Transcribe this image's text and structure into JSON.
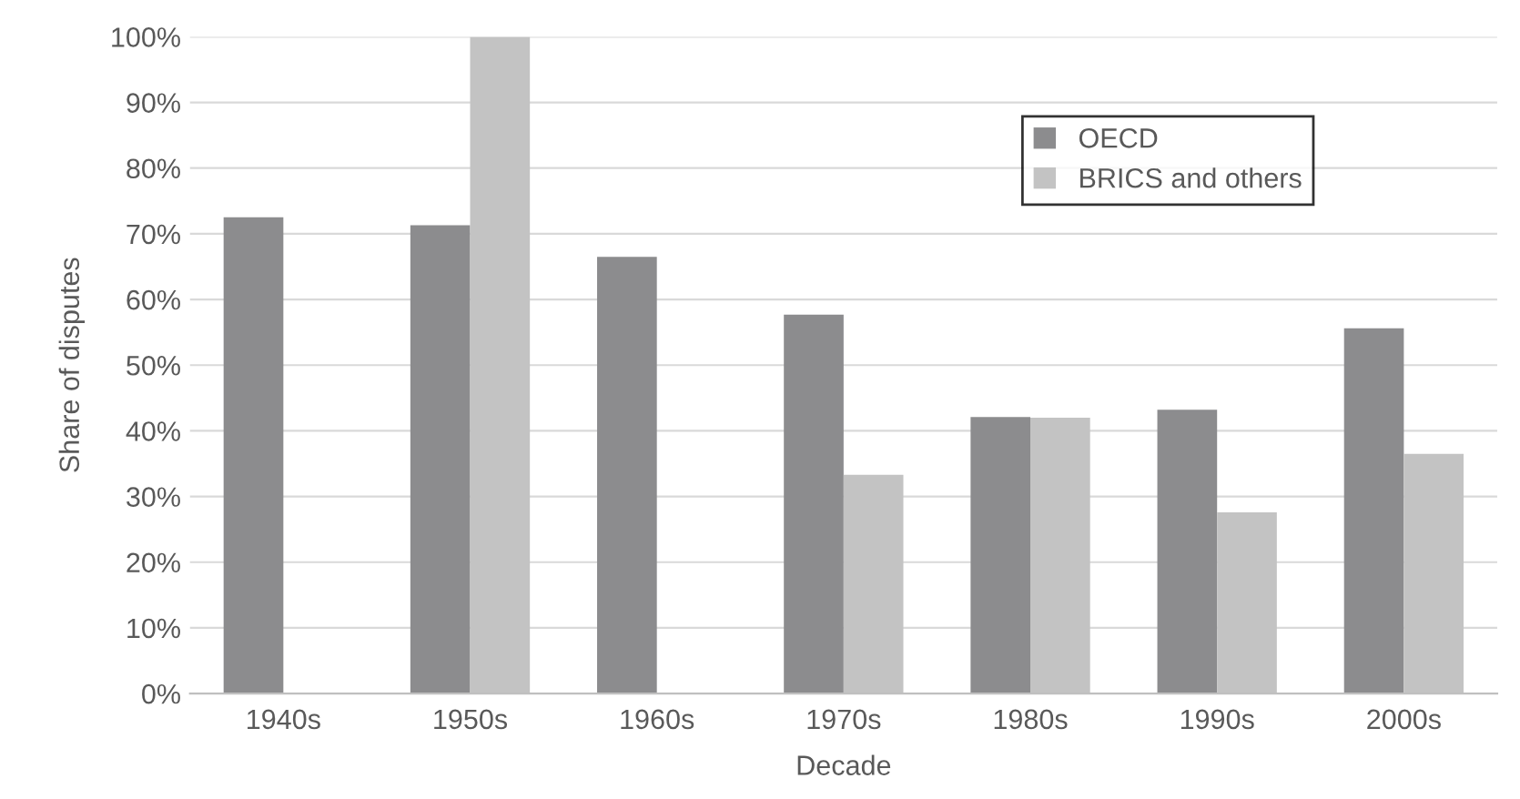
{
  "chart_data": {
    "type": "bar",
    "xlabel": "Decade",
    "ylabel": "Share of disputes",
    "categories": [
      "1940s",
      "1950s",
      "1960s",
      "1970s",
      "1980s",
      "1990s",
      "2000s"
    ],
    "series": [
      {
        "name": "OECD",
        "color": "#8c8c8e",
        "values": [
          72.5,
          71.3,
          66.5,
          57.7,
          42.1,
          43.2,
          55.6
        ]
      },
      {
        "name": "BRICS and others",
        "color": "#c3c3c3",
        "values": [
          null,
          100,
          null,
          33.3,
          42.0,
          27.6,
          36.5
        ]
      }
    ],
    "ylim": [
      0,
      100
    ],
    "yticks": [
      {
        "value": 0,
        "label": "0%"
      },
      {
        "value": 10,
        "label": "10%"
      },
      {
        "value": 20,
        "label": "20%"
      },
      {
        "value": 30,
        "label": "30%"
      },
      {
        "value": 40,
        "label": "40%"
      },
      {
        "value": 50,
        "label": "50%"
      },
      {
        "value": 60,
        "label": "60%"
      },
      {
        "value": 70,
        "label": "70%"
      },
      {
        "value": 80,
        "label": "80%"
      },
      {
        "value": 90,
        "label": "90%"
      },
      {
        "value": 100,
        "label": "100%"
      }
    ],
    "grid": "y",
    "legend": "top right"
  }
}
